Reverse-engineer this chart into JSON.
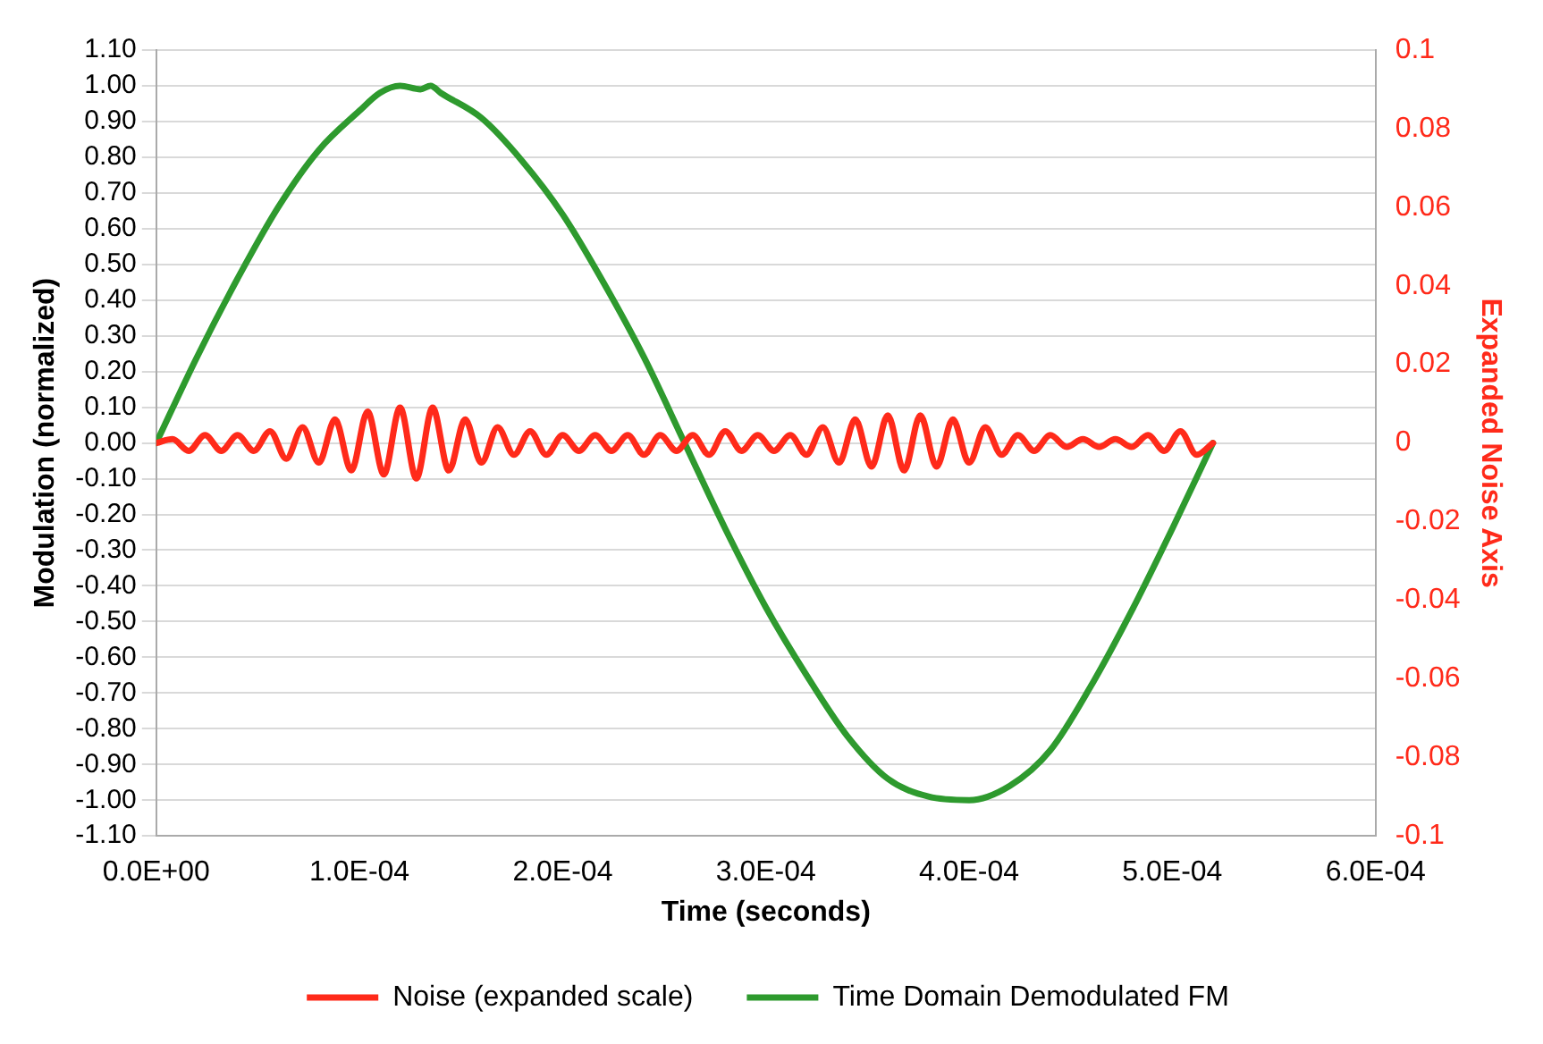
{
  "chart_data": {
    "type": "line",
    "xlabel": "Time (seconds)",
    "ylabel": "Modulation (normalized)",
    "y2label": "Expanded Noise Axis",
    "xlim": [
      0,
      0.0006
    ],
    "xticks": [
      {
        "value": 0,
        "label": "0.0E+00"
      },
      {
        "value": 0.0001,
        "label": "1.0E-04"
      },
      {
        "value": 0.0002,
        "label": "2.0E-04"
      },
      {
        "value": 0.0003,
        "label": "3.0E-04"
      },
      {
        "value": 0.0004,
        "label": "4.0E-04"
      },
      {
        "value": 0.0005,
        "label": "5.0E-04"
      },
      {
        "value": 0.0006,
        "label": "6.0E-04"
      }
    ],
    "ylim": [
      -1.1,
      1.1
    ],
    "yticks": [
      {
        "value": -1.1,
        "label": "-1.10"
      },
      {
        "value": -1,
        "label": "-1.00"
      },
      {
        "value": -0.9,
        "label": "-0.90"
      },
      {
        "value": -0.8,
        "label": "-0.80"
      },
      {
        "value": -0.7,
        "label": "-0.70"
      },
      {
        "value": -0.6,
        "label": "-0.60"
      },
      {
        "value": -0.5,
        "label": "-0.50"
      },
      {
        "value": -0.4,
        "label": "-0.40"
      },
      {
        "value": -0.3,
        "label": "-0.30"
      },
      {
        "value": -0.2,
        "label": "-0.20"
      },
      {
        "value": -0.1,
        "label": "-0.10"
      },
      {
        "value": 0,
        "label": "0.00"
      },
      {
        "value": 0.1,
        "label": "0.10"
      },
      {
        "value": 0.2,
        "label": "0.20"
      },
      {
        "value": 0.3,
        "label": "0.30"
      },
      {
        "value": 0.4,
        "label": "0.40"
      },
      {
        "value": 0.5,
        "label": "0.50"
      },
      {
        "value": 0.6,
        "label": "0.60"
      },
      {
        "value": 0.7,
        "label": "0.70"
      },
      {
        "value": 0.8,
        "label": "0.80"
      },
      {
        "value": 0.9,
        "label": "0.90"
      },
      {
        "value": 1,
        "label": "1.00"
      },
      {
        "value": 1.1,
        "label": "1.10"
      }
    ],
    "y2lim": [
      -0.1,
      0.1
    ],
    "y2ticks": [
      -0.1,
      -0.08,
      -0.06,
      -0.04,
      -0.02,
      0,
      0.02,
      0.04,
      0.06,
      0.08,
      0.1
    ],
    "grid": "y",
    "legend": "bottom",
    "marker": "none",
    "line_style": "solid",
    "series": [
      {
        "name": "Time Domain Demodulated FM",
        "color": "#2e9a2e",
        "x": [
          0,
          2e-05,
          4e-05,
          6e-05,
          8e-05,
          0.0001,
          0.00011,
          0.00012,
          0.00013,
          0.000135,
          0.00014,
          0.00016,
          0.00018,
          0.0002,
          0.00022,
          0.00024,
          0.00026,
          0.00028,
          0.0003,
          0.00032,
          0.00034,
          0.00036,
          0.00038,
          0.0004,
          0.00042,
          0.00044,
          0.00046,
          0.00048,
          0.0005,
          0.00052
        ],
        "values": [
          0,
          0.24,
          0.46,
          0.66,
          0.82,
          0.93,
          0.98,
          1.0,
          0.99,
          1.0,
          0.98,
          0.91,
          0.79,
          0.64,
          0.45,
          0.24,
          0,
          -0.24,
          -0.46,
          -0.65,
          -0.82,
          -0.94,
          -0.99,
          -1.0,
          -0.96,
          -0.86,
          -0.68,
          -0.47,
          -0.24,
          0
        ]
      },
      {
        "name": "Noise (expanded scale)",
        "color": "#ff2a1a",
        "axis": "y2",
        "x": [
          0,
          8e-06,
          1.6e-05,
          2.4e-05,
          3.2e-05,
          4e-05,
          4.8e-05,
          5.6e-05,
          6.4e-05,
          7.2e-05,
          8e-05,
          8.8e-05,
          9.6e-05,
          0.000104,
          0.000112,
          0.00012,
          0.000128,
          0.000136,
          0.000144,
          0.000152,
          0.00016,
          0.000168,
          0.000176,
          0.000184,
          0.000192,
          0.0002,
          0.000208,
          0.000216,
          0.000224,
          0.000232,
          0.00024,
          0.000248,
          0.000256,
          0.000264,
          0.000272,
          0.00028,
          0.000288,
          0.000296,
          0.000304,
          0.000312,
          0.00032,
          0.000328,
          0.000336,
          0.000344,
          0.000352,
          0.00036,
          0.000368,
          0.000376,
          0.000384,
          0.000392,
          0.0004,
          0.000408,
          0.000416,
          0.000424,
          0.000432,
          0.00044,
          0.000448,
          0.000456,
          0.000464,
          0.000472,
          0.00048,
          0.000488,
          0.000496,
          0.000504,
          0.000512,
          0.00052
        ],
        "values": [
          0,
          0.001,
          -0.002,
          0.002,
          -0.002,
          0.002,
          -0.002,
          0.003,
          -0.004,
          0.004,
          -0.005,
          0.006,
          -0.007,
          0.008,
          -0.008,
          0.009,
          -0.009,
          0.009,
          -0.007,
          0.006,
          -0.005,
          0.004,
          -0.003,
          0.003,
          -0.003,
          0.002,
          -0.002,
          0.002,
          -0.002,
          0.002,
          -0.003,
          0.002,
          -0.002,
          0.002,
          -0.003,
          0.003,
          -0.002,
          0.002,
          -0.002,
          0.002,
          -0.003,
          0.004,
          -0.005,
          0.006,
          -0.006,
          0.007,
          -0.007,
          0.007,
          -0.006,
          0.006,
          -0.005,
          0.004,
          -0.003,
          0.002,
          -0.002,
          0.002,
          -0.001,
          0.001,
          -0.001,
          0.001,
          -0.001,
          0.002,
          -0.002,
          0.003,
          -0.003,
          0
        ]
      }
    ]
  }
}
